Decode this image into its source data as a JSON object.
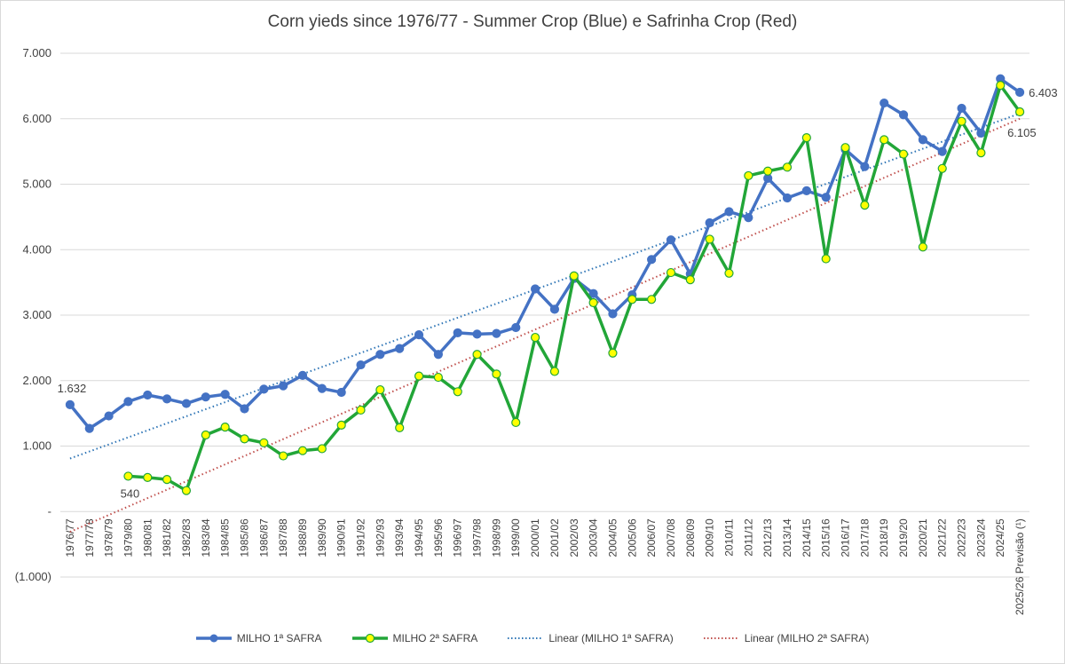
{
  "colors": {
    "series1": "#4472C4",
    "series2": "#22A638",
    "marker2_fill": "#FFFF00",
    "trend1": "#2E75B6",
    "trend2": "#C0504D",
    "grid": "#d9d9d9",
    "text": "#404040"
  },
  "chart_data": {
    "type": "line",
    "title": "Corn yieds since 1976/77 - Summer Crop (Blue) e Safrinha Crop (Red)",
    "xlabel": "",
    "ylabel": "",
    "ylim": [
      -1000,
      7000
    ],
    "y_ticks": [
      -1000,
      0,
      1000,
      2000,
      3000,
      4000,
      5000,
      6000,
      7000
    ],
    "y_tick_labels": [
      "(1.000)",
      "-",
      "1.000",
      "2.000",
      "3.000",
      "4.000",
      "5.000",
      "6.000",
      "7.000"
    ],
    "grid": true,
    "legend_position": "bottom",
    "categories": [
      "1976/77",
      "1977/78",
      "1978/79",
      "1979/80",
      "1980/81",
      "1981/82",
      "1982/83",
      "1983/84",
      "1984/85",
      "1985/86",
      "1986/87",
      "1987/88",
      "1988/89",
      "1989/90",
      "1990/91",
      "1991/92",
      "1992/93",
      "1993/94",
      "1994/95",
      "1995/96",
      "1996/97",
      "1997/98",
      "1998/99",
      "1999/00",
      "2000/01",
      "2001/02",
      "2002/03",
      "2003/04",
      "2004/05",
      "2005/06",
      "2006/07",
      "2007/08",
      "2008/09",
      "2009/10",
      "2010/11",
      "2011/12",
      "2012/13",
      "2013/14",
      "2014/15",
      "2015/16",
      "2016/17",
      "2017/18",
      "2018/19",
      "2019/20",
      "2020/21",
      "2021/22",
      "2022/23",
      "2023/24",
      "2024/25",
      "2025/26 Previsão (¹)"
    ],
    "series": [
      {
        "name": "MILHO 1ª SAFRA",
        "values": [
          1632,
          1270,
          1460,
          1680,
          1780,
          1720,
          1650,
          1750,
          1790,
          1570,
          1870,
          1920,
          2080,
          1880,
          1820,
          2240,
          2400,
          2490,
          2700,
          2400,
          2730,
          2710,
          2720,
          2810,
          3400,
          3090,
          3560,
          3330,
          3020,
          3310,
          3850,
          4150,
          3630,
          4410,
          4580,
          4490,
          5090,
          4790,
          4900,
          4800,
          5530,
          5270,
          6240,
          6060,
          5680,
          5500,
          6160,
          5780,
          6610,
          6403
        ]
      },
      {
        "name": "MILHO 2ª SAFRA",
        "values": [
          null,
          null,
          null,
          540,
          520,
          490,
          320,
          1170,
          1290,
          1110,
          1050,
          850,
          930,
          960,
          1320,
          1550,
          1860,
          1280,
          2070,
          2050,
          1830,
          2400,
          2100,
          1360,
          2660,
          2140,
          3600,
          3190,
          2420,
          3240,
          3240,
          3650,
          3540,
          4160,
          3640,
          5130,
          5200,
          5260,
          5710,
          3860,
          5560,
          4680,
          5680,
          5460,
          4040,
          5240,
          5960,
          5480,
          6510,
          6105
        ]
      },
      {
        "name": "Linear (MILHO 1ª SAFRA)",
        "trend_of": "MILHO 1ª SAFRA",
        "start": 810,
        "end": 6080
      },
      {
        "name": "Linear (MILHO 2ª SAFRA)",
        "trend_of": "MILHO 2ª SAFRA",
        "start": -310,
        "end": 6000
      }
    ],
    "annotations": [
      {
        "category": "1976/77",
        "series": "MILHO 1ª SAFRA",
        "label": "1.632"
      },
      {
        "category": "1979/80",
        "series": "MILHO 2ª SAFRA",
        "label": "540"
      },
      {
        "category": "2025/26 Previsão (¹)",
        "series": "MILHO 1ª SAFRA",
        "label": "6.403"
      },
      {
        "category": "2025/26 Previsão (¹)",
        "series": "MILHO 2ª SAFRA",
        "label": "6.105"
      }
    ]
  }
}
